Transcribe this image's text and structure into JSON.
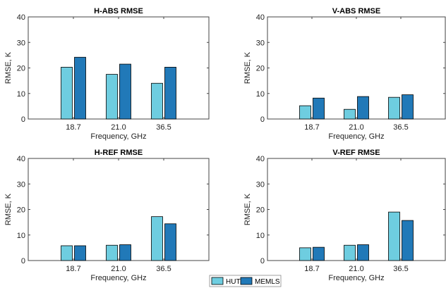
{
  "chart_data": [
    {
      "type": "bar",
      "title": "H-ABS RMSE",
      "xlabel": "Frequency, GHz",
      "ylabel": "RMSE, K",
      "categories": [
        "18.7",
        "21.0",
        "36.5"
      ],
      "ylim": [
        0,
        40
      ],
      "yticks": [
        "0",
        "10",
        "20",
        "30",
        "40"
      ],
      "series": [
        {
          "name": "HUT",
          "values": [
            20.3,
            17.5,
            14.0
          ]
        },
        {
          "name": "MEMLS",
          "values": [
            24.2,
            21.5,
            20.3
          ]
        }
      ]
    },
    {
      "type": "bar",
      "title": "V-ABS RMSE",
      "xlabel": "Frequency, GHz",
      "ylabel": "RMSE, K",
      "categories": [
        "18.7",
        "21.0",
        "36.5"
      ],
      "ylim": [
        0,
        40
      ],
      "yticks": [
        "0",
        "10",
        "20",
        "30",
        "40"
      ],
      "series": [
        {
          "name": "HUT",
          "values": [
            5.2,
            3.8,
            8.5
          ]
        },
        {
          "name": "MEMLS",
          "values": [
            8.2,
            8.8,
            9.5
          ]
        }
      ]
    },
    {
      "type": "bar",
      "title": "H-REF RMSE",
      "xlabel": "Frequency, GHz",
      "ylabel": "RMSE, K",
      "categories": [
        "18.7",
        "21.0",
        "36.5"
      ],
      "ylim": [
        0,
        40
      ],
      "yticks": [
        "0",
        "10",
        "20",
        "30",
        "40"
      ],
      "series": [
        {
          "name": "HUT",
          "values": [
            5.8,
            6.0,
            17.2
          ]
        },
        {
          "name": "MEMLS",
          "values": [
            5.8,
            6.2,
            14.4
          ]
        }
      ]
    },
    {
      "type": "bar",
      "title": "V-REF RMSE",
      "xlabel": "Frequency, GHz",
      "ylabel": "RMSE, K",
      "categories": [
        "18.7",
        "21.0",
        "36.5"
      ],
      "ylim": [
        0,
        40
      ],
      "yticks": [
        "0",
        "10",
        "20",
        "30",
        "40"
      ],
      "series": [
        {
          "name": "HUT",
          "values": [
            5.0,
            6.0,
            19.0
          ]
        },
        {
          "name": "MEMLS",
          "values": [
            5.2,
            6.2,
            15.7
          ]
        }
      ]
    }
  ],
  "legend": {
    "placement": "bottom-center",
    "items": [
      {
        "name": "HUT",
        "color": "#6ecde0"
      },
      {
        "name": "MEMLS",
        "color": "#2179b8"
      }
    ]
  },
  "colors": {
    "HUT": "#6ecde0",
    "MEMLS": "#2179b8",
    "bar_edge": "#000000"
  }
}
